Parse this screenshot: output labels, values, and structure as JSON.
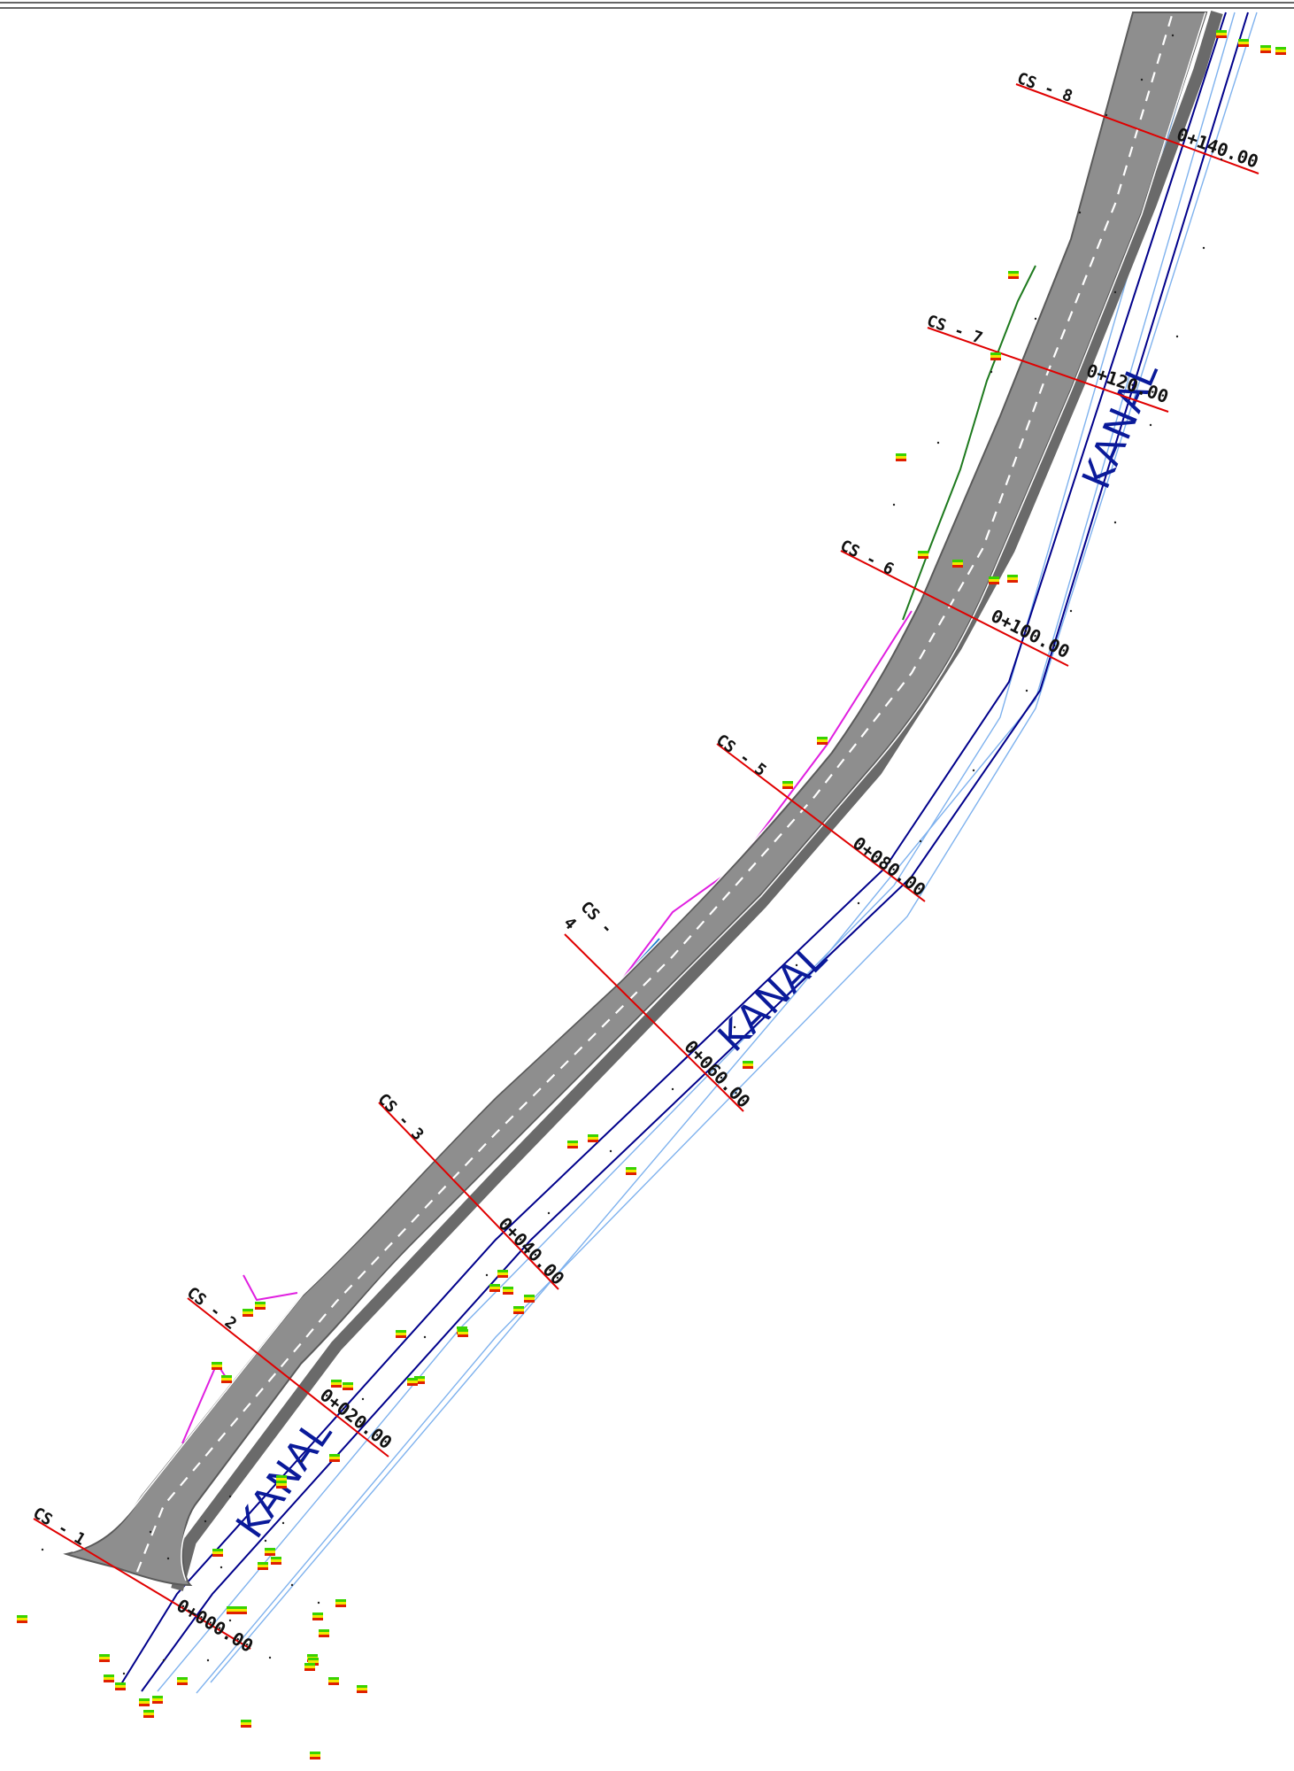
{
  "drawing": {
    "colors": {
      "road_surface": "#8e8e8e",
      "road_edge": "#5a5a5a",
      "road_center_line": "#ffffff",
      "shoulder_hatch": "#6a6a6a",
      "canal_line": "#00008b",
      "canal_outer_line": "#7fb2ee",
      "section_line": "#e00000",
      "kanal_text": "#0a1a9a",
      "survey_marker_top": "#39d300",
      "survey_marker_mid": "#f2e800",
      "survey_marker_bottom": "#e02000",
      "magenta_boundary": "#e020e0",
      "green_boundary": "#1e7a1e",
      "border": "#333333"
    },
    "cross_sections": [
      {
        "label": "CS - 1",
        "chainage": "0+000.00"
      },
      {
        "label": "CS - 2",
        "chainage": "0+020.00"
      },
      {
        "label": "CS - 3",
        "chainage": "0+040.00"
      },
      {
        "label": "CS -",
        "label_line2": "4",
        "chainage": "0+060.00"
      },
      {
        "label": "CS - 5",
        "chainage": "0+080.00"
      },
      {
        "label": "CS - 6",
        "chainage": "0+100.00"
      },
      {
        "label": "CS - 7",
        "chainage": "0+120.00"
      },
      {
        "label": "CS - 8",
        "chainage": "0+140.00"
      }
    ],
    "canal_labels": [
      "KANAL",
      "KANAL",
      "KANAL"
    ]
  }
}
